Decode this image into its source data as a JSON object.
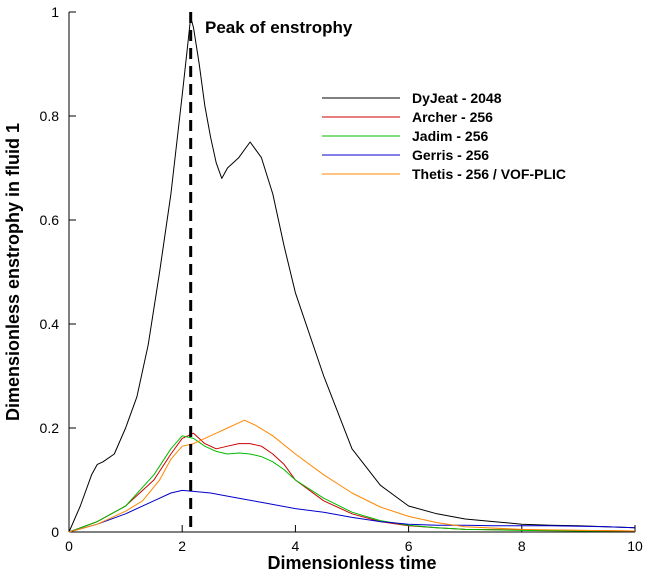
{
  "chart_data": {
    "type": "line",
    "title": "",
    "xlabel": "Dimensionless time",
    "ylabel": "Dimensionless enstrophy in fluid 1",
    "xlim": [
      0,
      10
    ],
    "ylim": [
      0,
      1
    ],
    "xticks": [
      0,
      2,
      4,
      6,
      8,
      10
    ],
    "yticks": [
      0,
      0.2,
      0.4,
      0.6,
      0.8,
      1
    ],
    "ytick_labels": [
      "0",
      "0.2",
      "0.4",
      "0.6",
      "0.8",
      "1"
    ],
    "grid": false,
    "legend_position": "top-right",
    "annotation": {
      "text": "Peak of enstrophy",
      "x": 2.15
    },
    "series": [
      {
        "name": "DyJeat - 2048",
        "color": "#000000",
        "x": [
          0,
          0.2,
          0.4,
          0.5,
          0.6,
          0.8,
          1.0,
          1.2,
          1.4,
          1.6,
          1.8,
          2.0,
          2.1,
          2.15,
          2.2,
          2.3,
          2.4,
          2.5,
          2.6,
          2.7,
          2.8,
          3.0,
          3.2,
          3.4,
          3.6,
          3.8,
          4.0,
          4.5,
          5.0,
          5.5,
          6.0,
          6.5,
          7.0,
          7.5,
          8.0,
          8.5,
          9.0,
          9.5,
          10.0
        ],
        "y": [
          0,
          0.05,
          0.11,
          0.13,
          0.135,
          0.15,
          0.2,
          0.26,
          0.36,
          0.5,
          0.65,
          0.84,
          0.94,
          0.99,
          0.97,
          0.9,
          0.82,
          0.76,
          0.71,
          0.68,
          0.7,
          0.72,
          0.75,
          0.72,
          0.65,
          0.55,
          0.46,
          0.3,
          0.16,
          0.09,
          0.05,
          0.035,
          0.025,
          0.02,
          0.015,
          0.013,
          0.012,
          0.01,
          0.008
        ]
      },
      {
        "name": "Archer - 256",
        "color": "#cc0000",
        "x": [
          0,
          0.5,
          1.0,
          1.5,
          1.8,
          2.0,
          2.2,
          2.4,
          2.6,
          2.8,
          3.0,
          3.2,
          3.4,
          3.6,
          3.8,
          4.0,
          4.5,
          5.0,
          5.5,
          6.0,
          6.5,
          7.0,
          8.0,
          9.0,
          10.0
        ],
        "y": [
          0,
          0.02,
          0.05,
          0.1,
          0.15,
          0.18,
          0.19,
          0.17,
          0.16,
          0.165,
          0.17,
          0.17,
          0.165,
          0.15,
          0.13,
          0.1,
          0.06,
          0.035,
          0.02,
          0.012,
          0.008,
          0.005,
          0.004,
          0.003,
          0.002
        ]
      },
      {
        "name": "Jadim - 256",
        "color": "#00bb00",
        "x": [
          0,
          0.5,
          1.0,
          1.5,
          1.8,
          2.0,
          2.2,
          2.4,
          2.6,
          2.8,
          3.0,
          3.2,
          3.4,
          3.6,
          3.8,
          4.0,
          4.5,
          5.0,
          5.5,
          6.0,
          6.5,
          7.0,
          8.0,
          9.0,
          10.0
        ],
        "y": [
          0,
          0.02,
          0.05,
          0.11,
          0.16,
          0.185,
          0.18,
          0.165,
          0.155,
          0.15,
          0.152,
          0.15,
          0.145,
          0.135,
          0.12,
          0.1,
          0.065,
          0.038,
          0.022,
          0.013,
          0.008,
          0.005,
          0.003,
          0.002,
          0.002
        ]
      },
      {
        "name": "Gerris - 256",
        "color": "#0000cc",
        "x": [
          0,
          0.5,
          1.0,
          1.5,
          1.8,
          2.0,
          2.2,
          2.5,
          3.0,
          3.5,
          4.0,
          4.5,
          5.0,
          5.5,
          6.0,
          6.5,
          7.0,
          7.5,
          8.0,
          8.5,
          9.0,
          9.5,
          10.0
        ],
        "y": [
          0,
          0.015,
          0.035,
          0.06,
          0.075,
          0.08,
          0.078,
          0.075,
          0.065,
          0.055,
          0.045,
          0.038,
          0.028,
          0.02,
          0.015,
          0.013,
          0.013,
          0.012,
          0.012,
          0.012,
          0.011,
          0.01,
          0.008
        ]
      },
      {
        "name": "Thetis - 256 / VOF-PLIC",
        "color": "#ff8800",
        "x": [
          0,
          0.5,
          1.0,
          1.3,
          1.6,
          1.8,
          2.0,
          2.2,
          2.4,
          2.6,
          2.8,
          3.0,
          3.1,
          3.3,
          3.6,
          4.0,
          4.5,
          5.0,
          5.5,
          6.0,
          6.5,
          7.0,
          8.0,
          9.0,
          10.0
        ],
        "y": [
          0,
          0.015,
          0.04,
          0.06,
          0.1,
          0.14,
          0.165,
          0.17,
          0.18,
          0.19,
          0.2,
          0.21,
          0.215,
          0.205,
          0.185,
          0.15,
          0.11,
          0.075,
          0.048,
          0.03,
          0.018,
          0.01,
          0.005,
          0.003,
          0.002
        ]
      }
    ]
  }
}
